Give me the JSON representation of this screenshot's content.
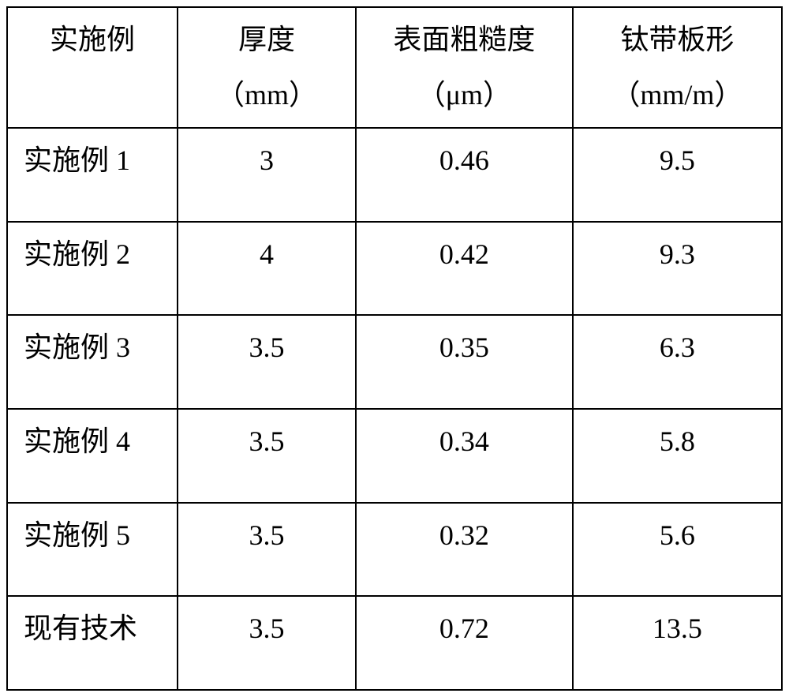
{
  "table": {
    "columns": [
      {
        "line1": "实施例",
        "line2": ""
      },
      {
        "line1": "厚度",
        "line2": "（mm）"
      },
      {
        "line1": "表面粗糙度",
        "line2": "（μm）"
      },
      {
        "line1": "钛带板形",
        "line2": "（mm/m）"
      }
    ],
    "rows": [
      {
        "label": "实施例 1",
        "thickness": "3",
        "roughness": "0.46",
        "shape": "9.5"
      },
      {
        "label": "实施例 2",
        "thickness": "4",
        "roughness": "0.42",
        "shape": "9.3"
      },
      {
        "label": "实施例 3",
        "thickness": "3.5",
        "roughness": "0.35",
        "shape": "6.3"
      },
      {
        "label": "实施例 4",
        "thickness": "3.5",
        "roughness": "0.34",
        "shape": "5.8"
      },
      {
        "label": "实施例 5",
        "thickness": "3.5",
        "roughness": "0.32",
        "shape": "5.6"
      },
      {
        "label": "现有技术",
        "thickness": "3.5",
        "roughness": "0.72",
        "shape": "13.5"
      }
    ],
    "styling": {
      "font_family": "SimSun",
      "font_size": 36,
      "border_color": "#000000",
      "border_width": 2,
      "background_color": "#ffffff",
      "header_align": "center",
      "label_align": "left",
      "data_align": "center",
      "column_widths_pct": [
        22,
        23,
        28,
        27
      ]
    }
  }
}
